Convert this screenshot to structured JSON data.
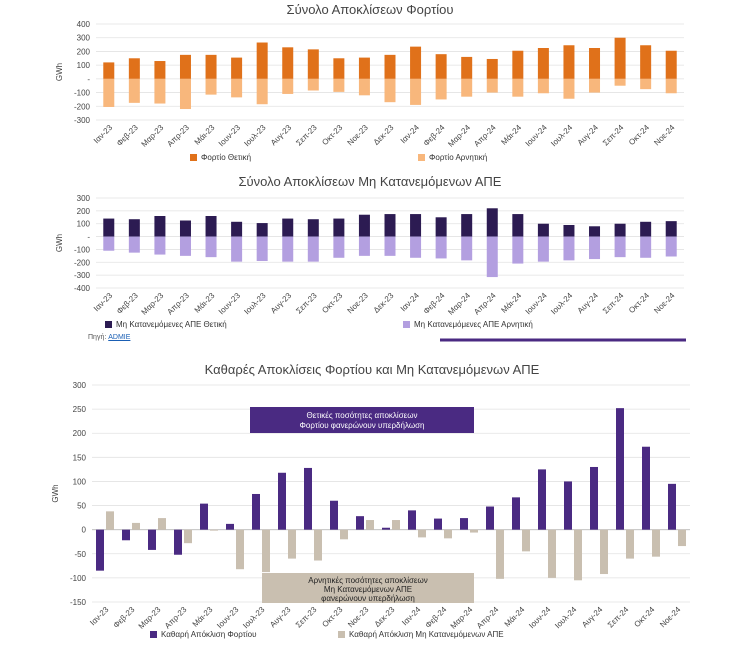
{
  "months": [
    "Ιαν-23",
    "Φεβ-23",
    "Μαρ-23",
    "Απρ-23",
    "Μάι-23",
    "Ιουν-23",
    "Ιουλ-23",
    "Αυγ-23",
    "Σεπ-23",
    "Οκτ-23",
    "Νοε-23",
    "Δεκ-23",
    "Ιαν-24",
    "Φεβ-24",
    "Μαρ-24",
    "Απρ-24",
    "Μάι-24",
    "Ιουν-24",
    "Ιουλ-24",
    "Αυγ-24",
    "Σεπ-24",
    "Οκτ-24",
    "Νοε-24"
  ],
  "source": {
    "prefix": "Πηγή:",
    "link": "ADMIE"
  },
  "chart_data": [
    {
      "type": "bar",
      "title": "Σύνολο Αποκλίσεων Φορτίου",
      "ylabel": "GWh",
      "ylim": [
        -300,
        400
      ],
      "yticks": [
        -300,
        -200,
        -100,
        0,
        100,
        200,
        300,
        400
      ],
      "ytick_labels": [
        "-300",
        "-200",
        "-100",
        "-",
        "100",
        "200",
        "300",
        "400"
      ],
      "colors": [
        "#e0711a",
        "#f8b77c"
      ],
      "series": [
        {
          "name": "Φορτίο Θετική",
          "values": [
            120,
            150,
            130,
            175,
            175,
            155,
            265,
            230,
            215,
            150,
            155,
            175,
            235,
            180,
            160,
            145,
            205,
            225,
            245,
            225,
            300,
            245,
            205
          ]
        },
        {
          "name": "Φορτίο Αρνητική",
          "values": [
            -205,
            -175,
            -180,
            -220,
            -115,
            -135,
            -185,
            -110,
            -85,
            -95,
            -120,
            -170,
            -190,
            -150,
            -130,
            -100,
            -130,
            -105,
            -145,
            -100,
            -50,
            -75,
            -105
          ]
        }
      ]
    },
    {
      "type": "bar",
      "title": "Σύνολο Αποκλίσεων Μη Κατανεμόμενων ΑΠΕ",
      "ylabel": "GWh",
      "ylim": [
        -400,
        300
      ],
      "yticks": [
        -400,
        -300,
        -200,
        -100,
        0,
        100,
        200,
        300
      ],
      "ytick_labels": [
        "-400",
        "-300",
        "-200",
        "-100",
        "-",
        "100",
        "200",
        "300"
      ],
      "colors": [
        "#2c1b52",
        "#b39fe0"
      ],
      "series": [
        {
          "name": "Μη Κατανεμόμενες ΑΠΕ Θετική",
          "values": [
            140,
            135,
            160,
            125,
            160,
            115,
            105,
            140,
            135,
            140,
            170,
            175,
            175,
            150,
            175,
            220,
            175,
            100,
            90,
            80,
            100,
            115,
            120
          ]
        },
        {
          "name": "Μη Κατανεμόμενες ΑΠΕ Αρνητική",
          "values": [
            -110,
            -125,
            -140,
            -150,
            -160,
            -195,
            -190,
            -195,
            -195,
            -165,
            -150,
            -150,
            -165,
            -170,
            -185,
            -315,
            -210,
            -195,
            -185,
            -175,
            -160,
            -165,
            -155
          ]
        }
      ]
    },
    {
      "type": "bar",
      "title": "Καθαρές Αποκλίσεις Φορτίου και Μη Κατανεμόμενων ΑΠΕ",
      "ylabel": "GWh",
      "ylim": [
        -150,
        300
      ],
      "yticks": [
        -150,
        -100,
        -50,
        0,
        50,
        100,
        150,
        200,
        250,
        300
      ],
      "ytick_labels": [
        "-150",
        "-100",
        "-50",
        "0",
        "50",
        "100",
        "150",
        "200",
        "250",
        "300"
      ],
      "colors": [
        "#4a2a82",
        "#c9bfb0"
      ],
      "series": [
        {
          "name": "Καθαρή Απόκλιση Φορτίου",
          "values": [
            -85,
            -22,
            -42,
            -52,
            54,
            12,
            74,
            118,
            128,
            60,
            28,
            4,
            40,
            23,
            24,
            48,
            67,
            125,
            100,
            130,
            252,
            172,
            95
          ]
        },
        {
          "name": "Καθαρή Απόκλιση Μη Κατανεμόμενων ΑΠΕ",
          "values": [
            38,
            14,
            24,
            -28,
            -2,
            -82,
            -88,
            -60,
            -64,
            -20,
            20,
            20,
            -16,
            -18,
            -6,
            -102,
            -45,
            -100,
            -105,
            -92,
            -60,
            -56,
            -34
          ]
        }
      ],
      "annotations": [
        {
          "text_lines": [
            "Θετικές ποσότητες αποκλίσεων",
            "Φορτίου φανερώνουν υπερδήλωση"
          ]
        },
        {
          "text_lines": [
            "Αρνητικές ποσότητες αποκλίσεων",
            "Μη Κατανεμόμενων ΑΠΕ",
            "φανερώνουν υπερδήλωση"
          ]
        }
      ]
    }
  ]
}
